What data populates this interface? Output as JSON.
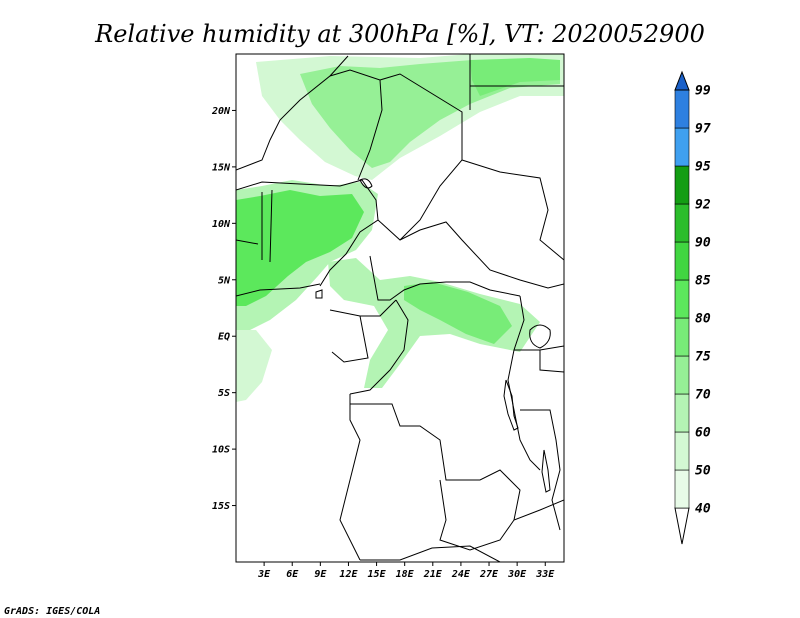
{
  "title": "Relative humidity at 300hPa [%], VT: 2020052900",
  "credit": "GrADS: IGES/COLA",
  "lat_labels": [
    "20N",
    "15N",
    "10N",
    "5N",
    "EQ",
    "5S",
    "10S",
    "15S"
  ],
  "lat_values": [
    20,
    15,
    10,
    5,
    0,
    -5,
    -10,
    -15
  ],
  "lon_labels": [
    "3E",
    "6E",
    "9E",
    "12E",
    "15E",
    "18E",
    "21E",
    "24E",
    "27E",
    "30E",
    "33E"
  ],
  "lon_values": [
    3,
    6,
    9,
    12,
    15,
    18,
    21,
    24,
    27,
    30,
    33
  ],
  "map_extent": {
    "lon_min": 0,
    "lon_max": 35,
    "lat_min": -20,
    "lat_max": 25
  },
  "colorbar": {
    "levels": [
      "40",
      "50",
      "60",
      "70",
      "75",
      "80",
      "85",
      "90",
      "92",
      "95",
      "97",
      "99"
    ],
    "colors": [
      "#e8fbe8",
      "#d3f8d3",
      "#b4f4b4",
      "#96f096",
      "#78ec78",
      "#5ce85c",
      "#41d641",
      "#2bbd2b",
      "#139d13",
      "#3fa0f0",
      "#2e80e0",
      "#1a60c8"
    ]
  },
  "palette": {
    "rh50": "#d3f8d3",
    "rh60": "#b4f4b4",
    "rh70": "#96f096",
    "rh80": "#5ce85c"
  }
}
